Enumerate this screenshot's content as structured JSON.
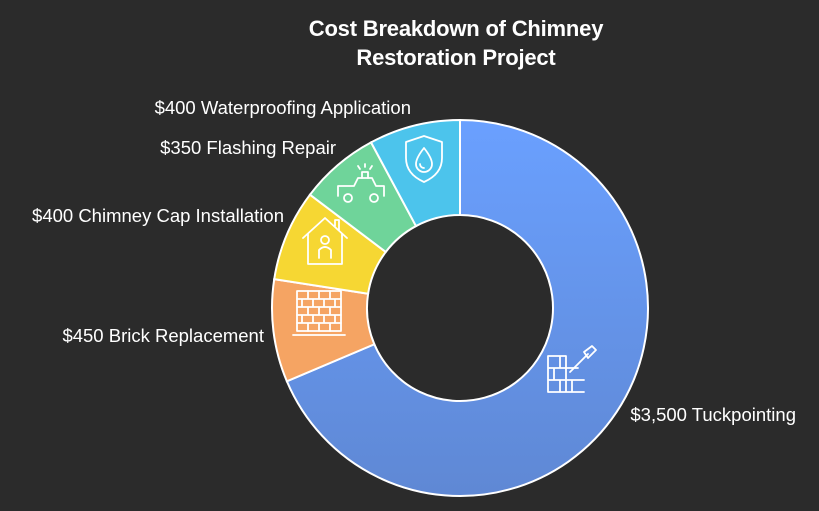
{
  "chart_data": {
    "type": "pie",
    "title_lines": [
      "Cost Breakdown of Chimney",
      "Restoration Project"
    ],
    "categories": [
      "Tuckpointing",
      "Brick Replacement",
      "Chimney Cap Installation",
      "Flashing Repair",
      "Waterproofing Application"
    ],
    "values": [
      3500,
      450,
      400,
      350,
      400
    ],
    "labels": [
      "$3,500 Tuckpointing",
      "$450 Brick Replacement",
      "$400 Chimney Cap Installation",
      "$350 Flashing Repair",
      "$400 Waterproofing Application"
    ],
    "colors": [
      "#6a9cf0",
      "#f5a463",
      "#f6d733",
      "#6fd49a",
      "#4cc4ec"
    ],
    "icons": [
      "brick-trowel-icon",
      "brick-wall-icon",
      "house-person-icon",
      "tow-truck-icon",
      "water-drop-shield-icon"
    ],
    "donut": true,
    "legend": "none"
  }
}
